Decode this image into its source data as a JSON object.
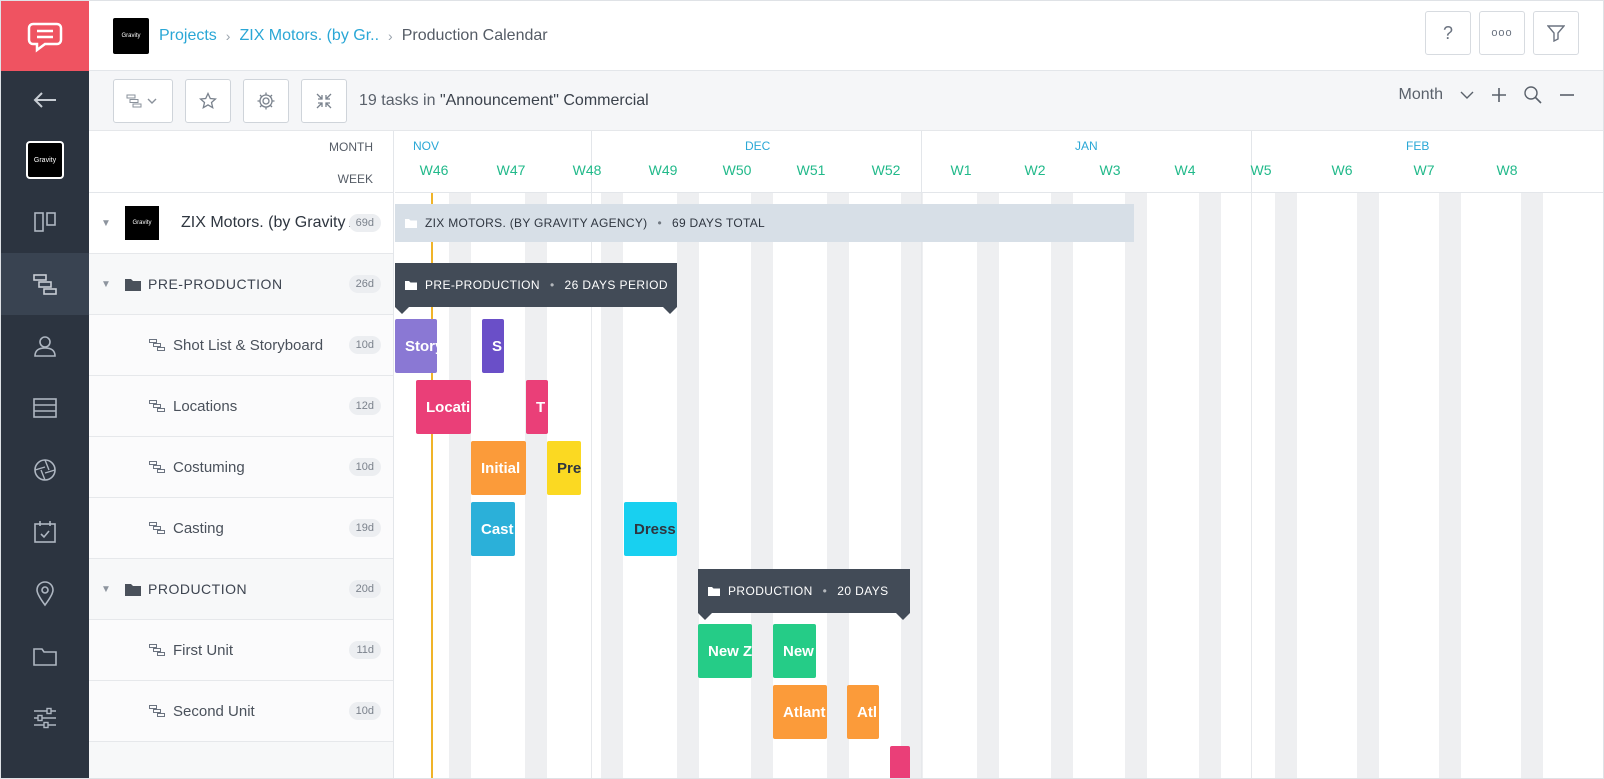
{
  "rail": {
    "brand_chip": "Gravity",
    "items": [
      {
        "icon": "board-icon"
      },
      {
        "icon": "gantt-icon"
      },
      {
        "icon": "people-icon"
      },
      {
        "icon": "list-icon"
      },
      {
        "icon": "aperture-icon"
      },
      {
        "icon": "calendar-check-icon"
      },
      {
        "icon": "location-pin-icon"
      },
      {
        "icon": "folder-icon"
      },
      {
        "icon": "sliders-icon"
      }
    ]
  },
  "header": {
    "brand_logo": "Gravity",
    "breadcrumb": [
      "Projects",
      "ZIX Motors. (by Gr..",
      "Production Calendar"
    ],
    "help": "?",
    "more": "ooo"
  },
  "toolbar": {
    "tasks_count_text": "19 tasks in ",
    "project_name": "\"Announcement\" Commercial",
    "view_mode": "Month"
  },
  "panel": {
    "month_label": "MONTH",
    "week_label": "WEEK",
    "project": {
      "brand": "Gravity",
      "label": "ZIX Motors. (by Gravity Agency)",
      "duration": "69d"
    },
    "rows": [
      {
        "type": "group",
        "label": "PRE-PRODUCTION",
        "duration": "26d"
      },
      {
        "type": "task",
        "label": "Shot List & Storyboard",
        "duration": "10d"
      },
      {
        "type": "task",
        "label": "Locations",
        "duration": "12d"
      },
      {
        "type": "task",
        "label": "Costuming",
        "duration": "10d"
      },
      {
        "type": "task",
        "label": "Casting",
        "duration": "19d"
      },
      {
        "type": "group",
        "label": "PRODUCTION",
        "duration": "20d"
      },
      {
        "type": "task",
        "label": "First Unit",
        "duration": "11d"
      },
      {
        "type": "task",
        "label": "Second Unit",
        "duration": "10d"
      }
    ]
  },
  "timeline": {
    "months": [
      "NOV",
      "DEC",
      "JAN",
      "FEB"
    ],
    "weeks": [
      "W46",
      "W47",
      "W48",
      "W49",
      "W50",
      "W51",
      "W52",
      "W1",
      "W2",
      "W3",
      "W4",
      "W5",
      "W6",
      "W7",
      "W8"
    ],
    "summary": {
      "title": "ZIX MOTORS. (BY GRAVITY AGENCY)",
      "total": "69 DAYS TOTAL"
    },
    "groups": [
      {
        "title": "PRE-PRODUCTION",
        "period": "26 DAYS PERIOD"
      },
      {
        "title": "PRODUCTION",
        "period": "20 DAYS"
      }
    ],
    "bars": [
      {
        "label": "Story",
        "color": "#8a78d4"
      },
      {
        "label": "S",
        "color": "#6a4fc8"
      },
      {
        "label": "Locati",
        "color": "#ea3f78"
      },
      {
        "label": "T",
        "color": "#ea3f78"
      },
      {
        "label": "Initial",
        "color": "#fb9b3a"
      },
      {
        "label": "Pre",
        "color": "#fbd922"
      },
      {
        "label": "Cast",
        "color": "#2bb0d9"
      },
      {
        "label": "Dress",
        "color": "#18d0f0"
      },
      {
        "label": "New Z",
        "color": "#25cc87"
      },
      {
        "label": "New",
        "color": "#25cc87"
      },
      {
        "label": "Atlant",
        "color": "#fb9b3a"
      },
      {
        "label": "Atl",
        "color": "#fb9b3a"
      },
      {
        "label": "",
        "color": "#ea3f78"
      }
    ]
  }
}
